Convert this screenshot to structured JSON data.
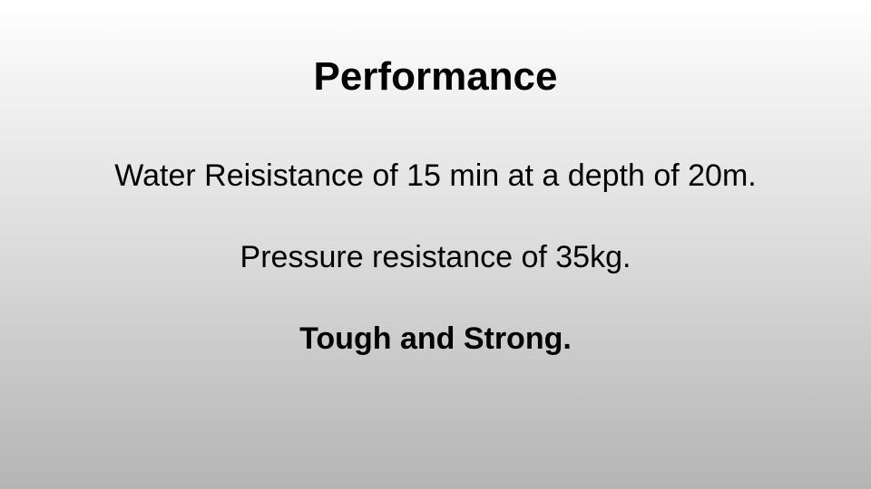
{
  "slide": {
    "title": "Performance",
    "lines": [
      "Water Reisistance of 15 min at a depth of 20m.",
      "Pressure resistance of 35kg.",
      "Tough and Strong."
    ]
  },
  "colors": {
    "text": "#000000",
    "background_top": "#ffffff",
    "background_bottom": "#b4b4b4"
  }
}
